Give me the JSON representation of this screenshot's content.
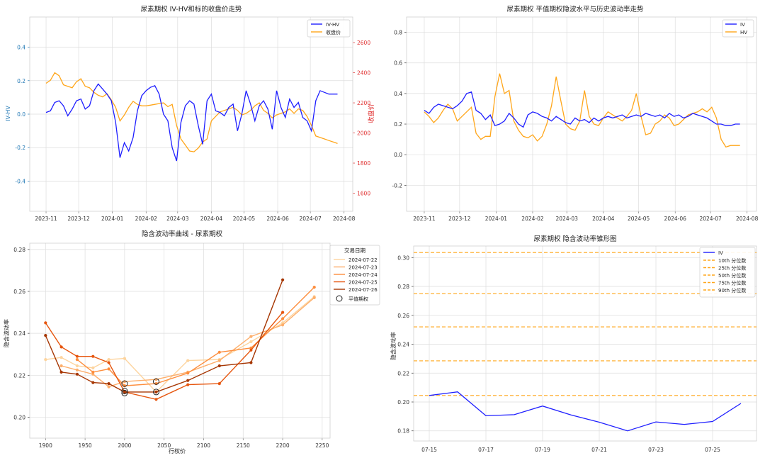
{
  "colors": {
    "iv": "#1f1fff",
    "orange": "#ffa61a",
    "red": "#e03030",
    "tickblue": "#1f77b4",
    "grid": "#dddddd",
    "smile": [
      "#fdd49e",
      "#fdae6b",
      "#fd8d3c",
      "#e6550d",
      "#a63603"
    ]
  },
  "chart_data": [
    {
      "type": "line",
      "title": "尿素期权 IV-HV和标的收盘价走势",
      "ylabel": "IV-HV",
      "y2label": "收盘价",
      "ylim": [
        -0.58,
        0.58
      ],
      "y2lim": [
        1480,
        2770
      ],
      "yticks": [
        "-0.4",
        "-0.2",
        "0.0",
        "0.2",
        "0.4"
      ],
      "yticks_v": [
        -0.4,
        -0.2,
        0.0,
        0.2,
        0.4
      ],
      "y2ticks": [
        "1600",
        "1800",
        "2000",
        "2200",
        "2400",
        "2600"
      ],
      "y2ticks_v": [
        1600,
        1800,
        2000,
        2200,
        2400,
        2600
      ],
      "xlim": [
        -15,
        282
      ],
      "xticks": [
        "2023-11",
        "2023-12",
        "2024-01",
        "2024-02",
        "2024-03",
        "2024-04",
        "2024-05",
        "2024-06",
        "2024-07",
        "2024-08"
      ],
      "xticks_v": [
        0,
        30,
        61,
        92,
        121,
        152,
        182,
        213,
        243,
        274
      ],
      "legend_position": "top-right",
      "series": [
        {
          "name": "IV-HV",
          "axis": "left",
          "x": [
            0,
            4,
            8,
            12,
            16,
            20,
            24,
            28,
            32,
            36,
            40,
            44,
            48,
            52,
            56,
            60,
            64,
            68,
            72,
            76,
            80,
            84,
            88,
            92,
            96,
            100,
            104,
            108,
            112,
            116,
            120,
            124,
            128,
            132,
            136,
            140,
            144,
            148,
            152,
            156,
            160,
            164,
            168,
            172,
            176,
            180,
            184,
            188,
            192,
            196,
            200,
            204,
            208,
            212,
            216,
            220,
            224,
            228,
            232,
            236,
            240,
            244,
            248,
            252,
            256,
            260,
            264,
            268
          ],
          "values": [
            0.01,
            0.02,
            0.07,
            0.08,
            0.05,
            -0.01,
            0.03,
            0.08,
            0.09,
            0.03,
            0.05,
            0.14,
            0.18,
            0.15,
            0.12,
            0.08,
            -0.05,
            -0.26,
            -0.17,
            -0.22,
            -0.14,
            0.02,
            0.11,
            0.14,
            0.16,
            0.17,
            0.12,
            0.0,
            -0.04,
            -0.2,
            -0.28,
            -0.05,
            0.05,
            0.08,
            0.06,
            -0.07,
            -0.18,
            0.08,
            0.12,
            0.02,
            0.01,
            -0.01,
            0.04,
            0.06,
            -0.1,
            0.0,
            0.14,
            0.06,
            -0.04,
            0.05,
            0.08,
            0.03,
            -0.09,
            0.14,
            0.04,
            -0.02,
            0.09,
            0.04,
            0.07,
            -0.02,
            -0.04,
            -0.1,
            0.08,
            0.14,
            0.13,
            0.12,
            0.12,
            0.12
          ]
        },
        {
          "name": "收盘价",
          "axis": "right",
          "x": [
            0,
            4,
            8,
            12,
            16,
            20,
            24,
            28,
            32,
            36,
            40,
            44,
            48,
            52,
            56,
            60,
            64,
            68,
            72,
            76,
            80,
            84,
            88,
            92,
            96,
            100,
            104,
            108,
            112,
            116,
            120,
            124,
            128,
            132,
            136,
            140,
            144,
            148,
            152,
            156,
            160,
            164,
            168,
            172,
            176,
            180,
            184,
            188,
            192,
            196,
            200,
            204,
            208,
            212,
            216,
            220,
            224,
            228,
            232,
            236,
            240,
            244,
            248,
            252,
            256,
            260,
            264,
            268
          ],
          "values": [
            2330,
            2350,
            2400,
            2380,
            2320,
            2310,
            2300,
            2340,
            2360,
            2310,
            2300,
            2270,
            2250,
            2240,
            2260,
            2220,
            2170,
            2080,
            2120,
            2170,
            2210,
            2190,
            2180,
            2180,
            2185,
            2190,
            2195,
            2200,
            2175,
            2190,
            2050,
            1960,
            1920,
            1880,
            1875,
            1900,
            1940,
            1960,
            2080,
            2110,
            2140,
            2150,
            2160,
            2170,
            2150,
            2120,
            2130,
            2150,
            2180,
            2200,
            2150,
            2130,
            2100,
            2120,
            2130,
            2140,
            2160,
            2130,
            2160,
            2150,
            2110,
            2050,
            1980,
            1970,
            1960,
            1950,
            1940,
            1930
          ]
        }
      ]
    },
    {
      "type": "line",
      "title": "尿素期权 平值期权隐波水平与历史波动率走势",
      "ylim": [
        -0.37,
        0.9
      ],
      "yticks": [
        "-0.2",
        "0.0",
        "0.2",
        "0.4",
        "0.6",
        "0.8"
      ],
      "yticks_v": [
        -0.2,
        0.0,
        0.2,
        0.4,
        0.6,
        0.8
      ],
      "xlim": [
        -15,
        282
      ],
      "xticks": [
        "2023-11",
        "2023-12",
        "2024-01",
        "2024-02",
        "2024-03",
        "2024-04",
        "2024-05",
        "2024-06",
        "2024-07",
        "2024-08"
      ],
      "xticks_v": [
        0,
        30,
        61,
        92,
        121,
        152,
        182,
        213,
        243,
        274
      ],
      "legend_position": "top-right",
      "series": [
        {
          "name": "IV",
          "x": [
            0,
            4,
            8,
            12,
            16,
            20,
            24,
            28,
            32,
            36,
            40,
            44,
            48,
            52,
            56,
            60,
            64,
            68,
            72,
            76,
            80,
            84,
            88,
            92,
            96,
            100,
            104,
            108,
            112,
            116,
            120,
            124,
            128,
            132,
            136,
            140,
            144,
            148,
            152,
            156,
            160,
            164,
            168,
            172,
            176,
            180,
            184,
            188,
            192,
            196,
            200,
            204,
            208,
            212,
            216,
            220,
            224,
            228,
            232,
            236,
            240,
            244,
            248,
            252,
            256,
            260,
            264,
            268
          ],
          "values": [
            0.29,
            0.27,
            0.31,
            0.33,
            0.32,
            0.31,
            0.3,
            0.32,
            0.35,
            0.4,
            0.41,
            0.29,
            0.27,
            0.23,
            0.26,
            0.19,
            0.2,
            0.22,
            0.27,
            0.24,
            0.2,
            0.18,
            0.26,
            0.28,
            0.27,
            0.25,
            0.24,
            0.22,
            0.25,
            0.23,
            0.21,
            0.2,
            0.24,
            0.22,
            0.23,
            0.21,
            0.24,
            0.22,
            0.24,
            0.25,
            0.24,
            0.25,
            0.26,
            0.24,
            0.25,
            0.26,
            0.25,
            0.27,
            0.26,
            0.25,
            0.26,
            0.24,
            0.27,
            0.25,
            0.26,
            0.24,
            0.25,
            0.27,
            0.26,
            0.25,
            0.24,
            0.22,
            0.2,
            0.2,
            0.19,
            0.19,
            0.2,
            0.2
          ]
        },
        {
          "name": "HV",
          "x": [
            0,
            4,
            8,
            12,
            16,
            20,
            24,
            28,
            32,
            36,
            40,
            44,
            48,
            52,
            56,
            60,
            64,
            68,
            72,
            76,
            80,
            84,
            88,
            92,
            96,
            100,
            104,
            108,
            112,
            116,
            120,
            124,
            128,
            132,
            136,
            140,
            144,
            148,
            152,
            156,
            160,
            164,
            168,
            172,
            176,
            180,
            184,
            188,
            192,
            196,
            200,
            204,
            208,
            212,
            216,
            220,
            224,
            228,
            232,
            236,
            240,
            244,
            248,
            252,
            256,
            260,
            264,
            268
          ],
          "values": [
            0.28,
            0.25,
            0.21,
            0.24,
            0.29,
            0.33,
            0.3,
            0.22,
            0.25,
            0.28,
            0.31,
            0.14,
            0.1,
            0.12,
            0.12,
            0.38,
            0.53,
            0.4,
            0.42,
            0.22,
            0.16,
            0.12,
            0.11,
            0.13,
            0.09,
            0.12,
            0.2,
            0.32,
            0.51,
            0.35,
            0.2,
            0.17,
            0.16,
            0.22,
            0.42,
            0.25,
            0.2,
            0.19,
            0.24,
            0.28,
            0.26,
            0.24,
            0.22,
            0.25,
            0.29,
            0.4,
            0.25,
            0.13,
            0.14,
            0.2,
            0.22,
            0.26,
            0.24,
            0.19,
            0.2,
            0.23,
            0.26,
            0.27,
            0.28,
            0.3,
            0.28,
            0.31,
            0.24,
            0.1,
            0.05,
            0.06,
            0.06,
            0.06
          ]
        }
      ]
    },
    {
      "type": "line",
      "title": "隐含波动率曲线 - 尿素期权",
      "xlabel": "行权价",
      "ylabel": "隐含波动率",
      "xlim": [
        1880,
        2260
      ],
      "ylim": [
        0.19,
        0.283
      ],
      "xticks": [
        "1900",
        "1950",
        "2000",
        "2050",
        "2100",
        "2150",
        "2200",
        "2250"
      ],
      "xticks_v": [
        1900,
        1950,
        2000,
        2050,
        2100,
        2150,
        2200,
        2250
      ],
      "yticks": [
        "0.20",
        "0.22",
        "0.24",
        "0.26",
        "0.28"
      ],
      "yticks_v": [
        0.2,
        0.22,
        0.24,
        0.26,
        0.28
      ],
      "legend_title": "交易日期",
      "legend_position": "top-right",
      "atm_label": "平值期权",
      "series": [
        {
          "name": "2024-07-22",
          "x": [
            1900,
            1920,
            1940,
            1960,
            1980,
            2000,
            2040,
            2080,
            2120,
            2160,
            2200,
            2240
          ],
          "values": [
            0.2275,
            0.2285,
            0.2245,
            0.2235,
            0.2275,
            0.228,
            0.212,
            0.227,
            0.2275,
            0.236,
            0.245,
            0.2575
          ]
        },
        {
          "name": "2024-07-23",
          "x": [
            1920,
            1940,
            1960,
            1980,
            2000,
            2040,
            2080,
            2120,
            2160,
            2200,
            2240
          ],
          "values": [
            0.2245,
            0.2225,
            0.2205,
            0.2145,
            0.217,
            0.218,
            0.2215,
            0.227,
            0.2385,
            0.244,
            0.257
          ]
        },
        {
          "name": "2024-07-24",
          "x": [
            1940,
            1960,
            1980,
            2000,
            2040,
            2080,
            2120,
            2160,
            2200,
            2240
          ],
          "values": [
            0.2275,
            0.2215,
            0.223,
            0.215,
            0.216,
            0.221,
            0.231,
            0.233,
            0.247,
            0.262
          ]
        },
        {
          "name": "2024-07-25",
          "x": [
            1900,
            1920,
            1940,
            1960,
            1980,
            2000,
            2040,
            2080,
            2120,
            2160,
            2200
          ],
          "values": [
            0.245,
            0.2335,
            0.229,
            0.229,
            0.226,
            0.212,
            0.2085,
            0.2155,
            0.216,
            0.232,
            0.25
          ]
        },
        {
          "name": "2024-07-26",
          "x": [
            1900,
            1920,
            1940,
            1960,
            1980,
            2000,
            2040,
            2080,
            2120,
            2160,
            2200
          ],
          "values": [
            0.239,
            0.2215,
            0.2205,
            0.2165,
            0.216,
            0.212,
            0.212,
            0.2175,
            0.2245,
            0.226,
            0.2655
          ]
        }
      ],
      "atm_points": [
        {
          "x": 2000,
          "y": 0.216
        },
        {
          "x": 2000,
          "y": 0.2125
        },
        {
          "x": 2000,
          "y": 0.2115
        },
        {
          "x": 2040,
          "y": 0.217
        },
        {
          "x": 2040,
          "y": 0.212
        }
      ]
    },
    {
      "type": "line",
      "title": "尿素期权 隐含波动率锥形图",
      "ylabel": "隐含波动率",
      "ylim": [
        0.173,
        0.308
      ],
      "yticks": [
        "0.18",
        "0.20",
        "0.22",
        "0.24",
        "0.26",
        "0.28",
        "0.30"
      ],
      "yticks_v": [
        0.18,
        0.2,
        0.22,
        0.24,
        0.26,
        0.28,
        0.3
      ],
      "xlim": [
        -0.55,
        11.55
      ],
      "xticks": [
        "07-15",
        "07-17",
        "07-19",
        "07-21",
        "07-23",
        "07-25"
      ],
      "xticks_v": [
        0,
        2,
        4,
        6,
        8,
        10
      ],
      "legend_position": "top-right",
      "series": [
        {
          "name": "IV",
          "x": [
            0,
            1,
            2,
            3,
            4,
            5,
            6,
            7,
            8,
            9,
            10,
            11
          ],
          "values": [
            0.2045,
            0.207,
            0.1905,
            0.1912,
            0.1972,
            0.191,
            0.186,
            0.18,
            0.1862,
            0.1845,
            0.1865,
            0.199
          ]
        }
      ],
      "percentiles": [
        {
          "name": "10th 分位数",
          "value": 0.2045
        },
        {
          "name": "25th 分位数",
          "value": 0.2285
        },
        {
          "name": "50th 分位数",
          "value": 0.252
        },
        {
          "name": "75th 分位数",
          "value": 0.275
        },
        {
          "name": "90th 分位数",
          "value": 0.3035
        }
      ]
    }
  ]
}
